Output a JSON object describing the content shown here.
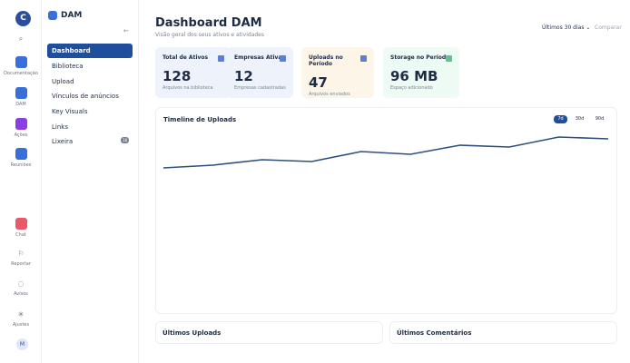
{
  "rail": {
    "avatar": "C",
    "items": [
      "Documentação",
      "DAM",
      "Ações",
      "Reuniões"
    ],
    "bottom": [
      "Chat",
      "Reportar",
      "Avisos",
      "Ajustes"
    ],
    "user": "M"
  },
  "sidebar": {
    "brand": "DAM",
    "nav": [
      "Dashboard",
      "Biblioteca",
      "Upload",
      "Vínculos de anúncios",
      "Key Visuals",
      "Links",
      "Lixeira"
    ],
    "badge": "18"
  },
  "header": {
    "title": "Dashboard DAM",
    "subtitle": "Visão geral dos seus ativos e atividades",
    "range": "Últimos 30 dias",
    "compare": "Comparar"
  },
  "cards": [
    {
      "label": "Total de Ativos",
      "value": "128",
      "note": "Arquivos na biblioteca"
    },
    {
      "label": "Empresas Ativas",
      "value": "12",
      "note": "Empresas cadastradas"
    },
    {
      "label": "Uploads no Período",
      "value": "47",
      "note": "Arquivos enviados"
    },
    {
      "label": "Storage no Período",
      "value": "96 MB",
      "note": "Espaço adicionado"
    }
  ],
  "chart_data": {
    "type": "line",
    "title": "Timeline de Uploads",
    "ranges": [
      "7d",
      "30d",
      "90d"
    ],
    "values": [
      77.5,
      79,
      82,
      81,
      86.5,
      85,
      90,
      89,
      94.5,
      93.5
    ],
    "color": "#2c4f7c",
    "ylim": [
      0,
      100
    ]
  },
  "panels": [
    "Últimos Uploads",
    "Últimos Comentários"
  ]
}
